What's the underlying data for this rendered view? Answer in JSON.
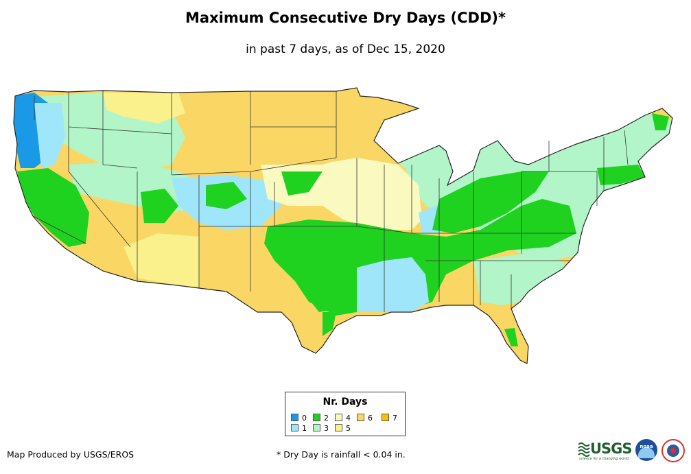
{
  "title": "Maximum Consecutive Dry Days (CDD)*",
  "subtitle": "in past 7 days, as of Dec 15, 2020",
  "legend": {
    "title": "Nr. Days",
    "items": [
      {
        "label": "0",
        "color": "#1a9ae6"
      },
      {
        "label": "1",
        "color": "#a0e6fa"
      },
      {
        "label": "2",
        "color": "#1fd21f"
      },
      {
        "label": "3",
        "color": "#b2f5c8"
      },
      {
        "label": "4",
        "color": "#fafac0"
      },
      {
        "label": "5",
        "color": "#faf08c"
      },
      {
        "label": "6",
        "color": "#fad764"
      },
      {
        "label": "7",
        "color": "#fac000"
      }
    ]
  },
  "footer": {
    "producer": "Map Produced by USGS/EROS",
    "note": "* Dry Day is rainfall < 0.04 in."
  },
  "logos": {
    "usgs": "USGS",
    "usgs_tagline": "science for a changing world",
    "noaa": "noaa"
  }
}
